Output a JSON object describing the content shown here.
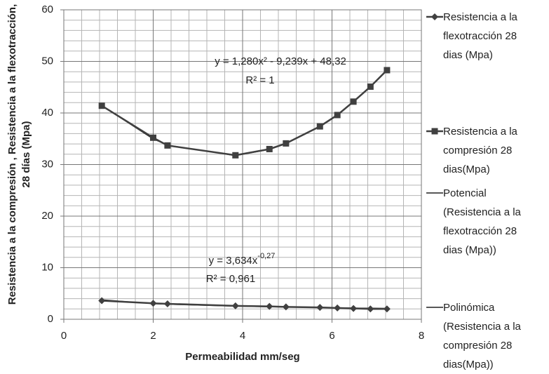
{
  "chart_data": {
    "type": "scatter",
    "x_label": "Permeabilidad mm/seg",
    "y_label": "Resistencia a la compresión , Resistencia a la flexotracción, 28 días (Mpa)",
    "x": [
      0.85,
      2.0,
      2.32,
      3.84,
      4.6,
      4.97,
      5.73,
      6.12,
      6.48,
      6.86,
      7.23
    ],
    "series": [
      {
        "name": "Resistencia a la flexotracción  28 dias (Mpa)",
        "color": "#404040",
        "marker": "diamond",
        "values": [
          3.6,
          3.1,
          3.0,
          2.6,
          2.5,
          2.4,
          2.3,
          2.2,
          2.1,
          2.0,
          2.0
        ]
      },
      {
        "name": "Resistencia a la compresión 28 dias(Mpa)",
        "color": "#404040",
        "marker": "square",
        "values": [
          41.4,
          35.2,
          33.7,
          31.8,
          33.0,
          34.1,
          37.4,
          39.6,
          42.2,
          45.1,
          48.3
        ]
      },
      {
        "name": "Potencial (Resistencia a la flexotracción  28 dias (Mpa))",
        "color": "#202020",
        "marker": "none",
        "values": [
          3.8,
          3.01,
          2.9,
          2.53,
          2.41,
          2.36,
          2.27,
          2.23,
          2.19,
          2.16,
          2.13
        ]
      },
      {
        "name": "Polinómica (Resistencia a la compresión 28 dias(Mpa))",
        "color": "#202020",
        "marker": "none",
        "values": [
          41.39,
          34.96,
          33.77,
          31.72,
          32.91,
          34.02,
          37.41,
          39.72,
          42.2,
          45.18,
          48.43
        ]
      }
    ],
    "annotations": [
      {
        "text": "y = 1,280x² - 9,239x + 48,32"
      },
      {
        "text": "R² = 1"
      },
      {
        "text": "y = 3,634x",
        "sup": "-0,27"
      },
      {
        "text": "R² = 0,961"
      }
    ],
    "xlim": [
      0,
      8
    ],
    "xticks": [
      0,
      2,
      4,
      6,
      8
    ],
    "ylim": [
      0,
      60
    ],
    "yticks": [
      0,
      10,
      20,
      30,
      40,
      50,
      60
    ],
    "grid": true,
    "minor_grid": {
      "x": 0.4,
      "y": 2
    },
    "legend": "right"
  }
}
